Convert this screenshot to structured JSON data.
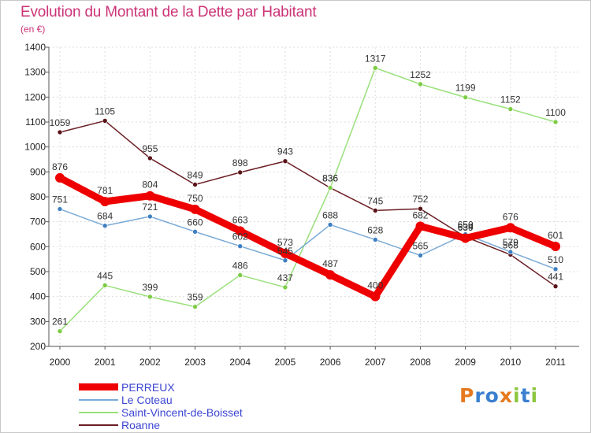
{
  "header": {
    "title": "Evolution du Montant de la Dette par Habitant",
    "subtitle": "(en €)"
  },
  "chart_data": {
    "type": "line",
    "title": "Evolution du Montant de la Dette par Habitant",
    "subtitle": "(en €)",
    "xlabel": "",
    "ylabel": "",
    "categories": [
      "2000",
      "2001",
      "2002",
      "2003",
      "2004",
      "2005",
      "2006",
      "2007",
      "2008",
      "2009",
      "2010",
      "2011"
    ],
    "ylim": [
      200,
      1400
    ],
    "yticks": [
      200,
      300,
      400,
      500,
      600,
      700,
      800,
      900,
      1000,
      1100,
      1200,
      1300,
      1400
    ],
    "grid": true,
    "legend_position": "bottom-left",
    "series": [
      {
        "name": "Roanne",
        "color": "#6b1e24",
        "marker": "#5a1418",
        "width": 1.5,
        "radius": 3,
        "values": [
          1059,
          1105,
          955,
          849,
          898,
          943,
          836,
          745,
          752,
          639,
          568,
          441
        ]
      },
      {
        "name": "Saint-Vincent-de-Boisset",
        "color": "#9ae07a",
        "marker": "#7ccc44",
        "width": 1.5,
        "radius": 3,
        "values": [
          261,
          445,
          399,
          359,
          486,
          437,
          836,
          1317,
          1252,
          1199,
          1152,
          1100
        ]
      },
      {
        "name": "Le Coteau",
        "color": "#7aaad6",
        "marker": "#3f7fc2",
        "width": 1.5,
        "radius": 3,
        "values": [
          751,
          684,
          721,
          660,
          602,
          545,
          688,
          628,
          565,
          650,
          579,
          510
        ]
      },
      {
        "name": "PERREUX",
        "color": "#ee0000",
        "marker": "#ee0000",
        "width": 9,
        "radius": 6,
        "values": [
          876,
          781,
          804,
          750,
          663,
          573,
          487,
          400,
          682,
          634,
          676,
          601
        ]
      }
    ]
  },
  "legend": {
    "items": [
      {
        "label": "PERREUX",
        "color": "#ee0000"
      },
      {
        "label": "Le Coteau",
        "color": "#7aaad6"
      },
      {
        "label": "Saint-Vincent-de-Boisset",
        "color": "#9ae07a"
      },
      {
        "label": "Roanne",
        "color": "#6b1e24"
      }
    ]
  },
  "logo": {
    "text": "Proxiti",
    "letters": [
      {
        "ch": "P",
        "color": "#e67a1e"
      },
      {
        "ch": "r",
        "color": "#3a7fd0"
      },
      {
        "ch": "o",
        "color": "#3a7fd0"
      },
      {
        "ch": "x",
        "color": "#e67a1e"
      },
      {
        "ch": "i",
        "color": "#8dc63f"
      },
      {
        "ch": "t",
        "color": "#3a7fd0"
      },
      {
        "ch": "i",
        "color": "#8dc63f"
      }
    ]
  }
}
